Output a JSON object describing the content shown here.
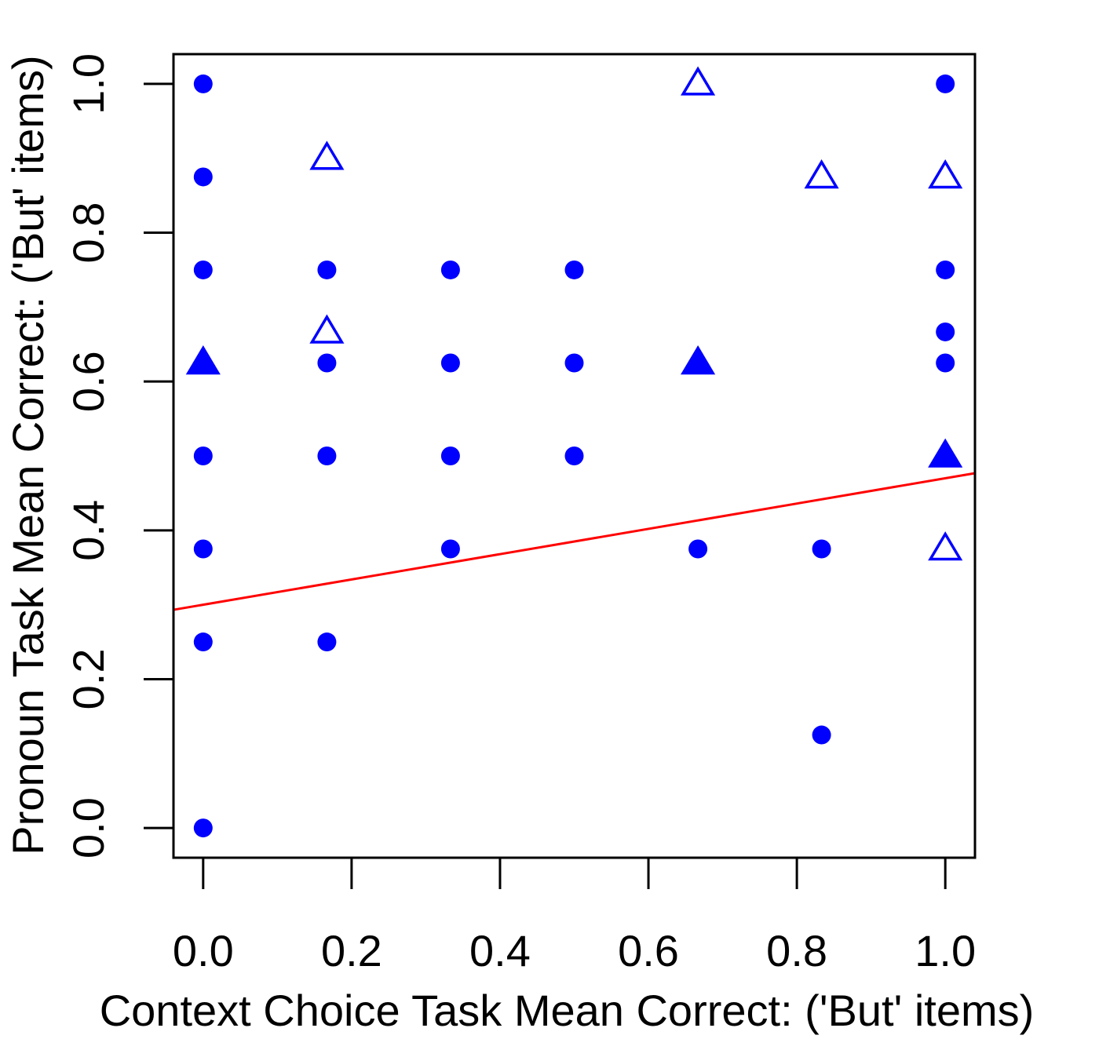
{
  "chart_data": {
    "type": "scatter",
    "xlabel": "Context Choice Task Mean Correct: ('But' items)",
    "ylabel": "Pronoun Task Mean Correct: ('But' items)",
    "xlim": [
      -0.04,
      1.04
    ],
    "ylim": [
      -0.04,
      1.04
    ],
    "x_ticks": [
      0.0,
      0.2,
      0.4,
      0.6,
      0.8,
      1.0
    ],
    "x_tick_labels": [
      "0.0",
      "0.2",
      "0.4",
      "0.6",
      "0.8",
      "1.0"
    ],
    "y_ticks": [
      0.0,
      0.2,
      0.4,
      0.6,
      0.8,
      1.0
    ],
    "y_tick_labels": [
      "0.0",
      "0.2",
      "0.4",
      "0.6",
      "0.8",
      "1.0"
    ],
    "grid": false,
    "series": [
      {
        "marker": "filled-circle",
        "color": "#0000ff",
        "points": [
          [
            0.0,
            1.0
          ],
          [
            0.0,
            0.875
          ],
          [
            0.0,
            0.75
          ],
          [
            0.0,
            0.5
          ],
          [
            0.0,
            0.375
          ],
          [
            0.0,
            0.25
          ],
          [
            0.0,
            0.0
          ],
          [
            0.1667,
            0.75
          ],
          [
            0.1667,
            0.625
          ],
          [
            0.1667,
            0.5
          ],
          [
            0.1667,
            0.25
          ],
          [
            0.3333,
            0.75
          ],
          [
            0.3333,
            0.625
          ],
          [
            0.3333,
            0.5
          ],
          [
            0.3333,
            0.375
          ],
          [
            0.5,
            0.75
          ],
          [
            0.5,
            0.625
          ],
          [
            0.5,
            0.5
          ],
          [
            0.6667,
            0.375
          ],
          [
            0.8333,
            0.375
          ],
          [
            0.8333,
            0.125
          ],
          [
            1.0,
            1.0
          ],
          [
            1.0,
            0.75
          ],
          [
            1.0,
            0.6667
          ],
          [
            1.0,
            0.625
          ]
        ]
      },
      {
        "marker": "open-triangle",
        "color": "#0000ff",
        "points": [
          [
            0.6667,
            1.0
          ],
          [
            0.1667,
            0.9
          ],
          [
            0.8333,
            0.875
          ],
          [
            1.0,
            0.875
          ],
          [
            0.1667,
            0.6667
          ],
          [
            1.0,
            0.375
          ]
        ]
      },
      {
        "marker": "filled-triangle",
        "color": "#0000ff",
        "points": [
          [
            0.0,
            0.625
          ],
          [
            0.6667,
            0.625
          ],
          [
            1.0,
            0.5
          ]
        ]
      }
    ],
    "regression_line": {
      "color": "#ff0000",
      "intercept": 0.3,
      "slope": 0.17
    }
  }
}
